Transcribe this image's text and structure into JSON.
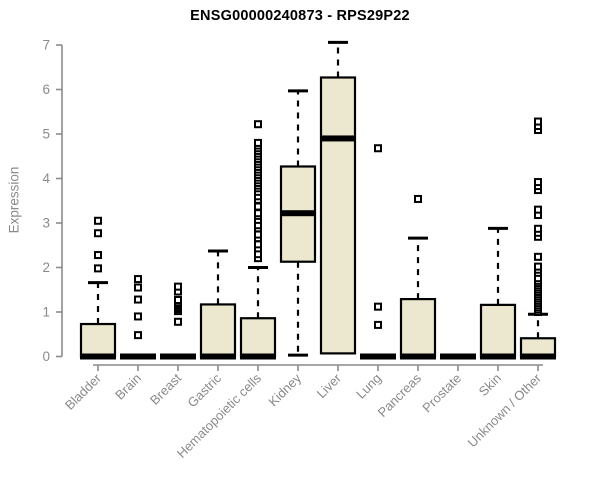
{
  "chart_data": {
    "type": "boxplot",
    "title": "ENSG00000240873 - RPS29P22",
    "ylabel": "Expression",
    "xlabel": "",
    "ylim": [
      0,
      7
    ],
    "yticks": [
      0,
      1,
      2,
      3,
      4,
      5,
      6,
      7
    ],
    "grid": false,
    "legend": false,
    "colors": {
      "box_fill": "#ece7cf",
      "box_border": "#000000",
      "median": "#000000",
      "whisker": "#000000",
      "outlier_border": "#000000",
      "outlier_fill": "#ffffff",
      "axis": "#8a8a8a",
      "tick_label": "#8a8a8a",
      "title": "#000000",
      "background": "#ffffff"
    },
    "categories": [
      "Bladder",
      "Brain",
      "Breast",
      "Gastric",
      "Hematopoietic cells",
      "Kidney",
      "Liver",
      "Lung",
      "Pancreas",
      "Prostate",
      "Skin",
      "Unknown / Other"
    ],
    "series": [
      {
        "name": "Bladder",
        "whisker_low": 0,
        "q1": 0,
        "median": 0,
        "q3": 0.73,
        "whisker_high": 1.66,
        "outliers": [
          1.98,
          2.28,
          2.77,
          3.05
        ]
      },
      {
        "name": "Brain",
        "whisker_low": 0,
        "q1": 0,
        "median": 0,
        "q3": 0,
        "whisker_high": 0,
        "outliers": [
          0.48,
          0.9,
          1.28,
          1.55,
          1.74
        ]
      },
      {
        "name": "Breast",
        "whisker_low": 0,
        "q1": 0,
        "median": 0,
        "q3": 0,
        "whisker_high": 0,
        "outliers": [
          0.78,
          1.02,
          1.06,
          1.1,
          1.14,
          1.18,
          1.22,
          1.27,
          1.46,
          1.57
        ]
      },
      {
        "name": "Gastric",
        "whisker_low": 0,
        "q1": 0,
        "median": 0,
        "q3": 1.17,
        "whisker_high": 2.37,
        "outliers": []
      },
      {
        "name": "Hematopoietic cells",
        "whisker_low": 0,
        "q1": 0,
        "median": 0,
        "q3": 0.86,
        "whisker_high": 2.0,
        "outliers": [
          2.21,
          2.3,
          2.43,
          2.52,
          2.66,
          2.74,
          2.88,
          2.95,
          3.07,
          3.16,
          3.22,
          3.37,
          3.52,
          3.6,
          3.7,
          3.78,
          3.84,
          3.9,
          3.96,
          4.02,
          4.08,
          4.14,
          4.2,
          4.26,
          4.32,
          4.38,
          4.44,
          4.5,
          4.56,
          4.62,
          4.68,
          4.74,
          4.8,
          5.22
        ]
      },
      {
        "name": "Kidney",
        "whisker_low": 0.03,
        "q1": 2.13,
        "median": 3.22,
        "q3": 4.27,
        "whisker_high": 5.97,
        "outliers": []
      },
      {
        "name": "Liver",
        "whisker_low": 0.07,
        "q1": 0.07,
        "median": 4.9,
        "q3": 6.27,
        "whisker_high": 7.06,
        "outliers": []
      },
      {
        "name": "Lung",
        "whisker_low": 0,
        "q1": 0,
        "median": 0,
        "q3": 0,
        "whisker_high": 0,
        "outliers": [
          0.71,
          1.12,
          4.68
        ]
      },
      {
        "name": "Pancreas",
        "whisker_low": 0,
        "q1": 0,
        "median": 0,
        "q3": 1.29,
        "whisker_high": 2.66,
        "outliers": [
          3.54
        ]
      },
      {
        "name": "Prostate",
        "whisker_low": 0,
        "q1": 0,
        "median": 0,
        "q3": 0,
        "whisker_high": 0,
        "outliers": []
      },
      {
        "name": "Skin",
        "whisker_low": 0,
        "q1": 0,
        "median": 0,
        "q3": 1.16,
        "whisker_high": 2.88,
        "outliers": []
      },
      {
        "name": "Unknown / Other",
        "whisker_low": 0,
        "q1": 0,
        "median": 0,
        "q3": 0.41,
        "whisker_high": 0.95,
        "outliers": [
          1.0,
          1.05,
          1.1,
          1.15,
          1.2,
          1.25,
          1.3,
          1.35,
          1.4,
          1.45,
          1.5,
          1.55,
          1.6,
          1.65,
          1.7,
          1.76,
          1.88,
          1.95,
          2.02,
          2.24,
          2.69,
          2.78,
          2.87,
          3.18,
          3.3,
          3.74,
          3.83,
          3.92,
          5.09,
          5.18,
          5.28
        ]
      }
    ]
  }
}
